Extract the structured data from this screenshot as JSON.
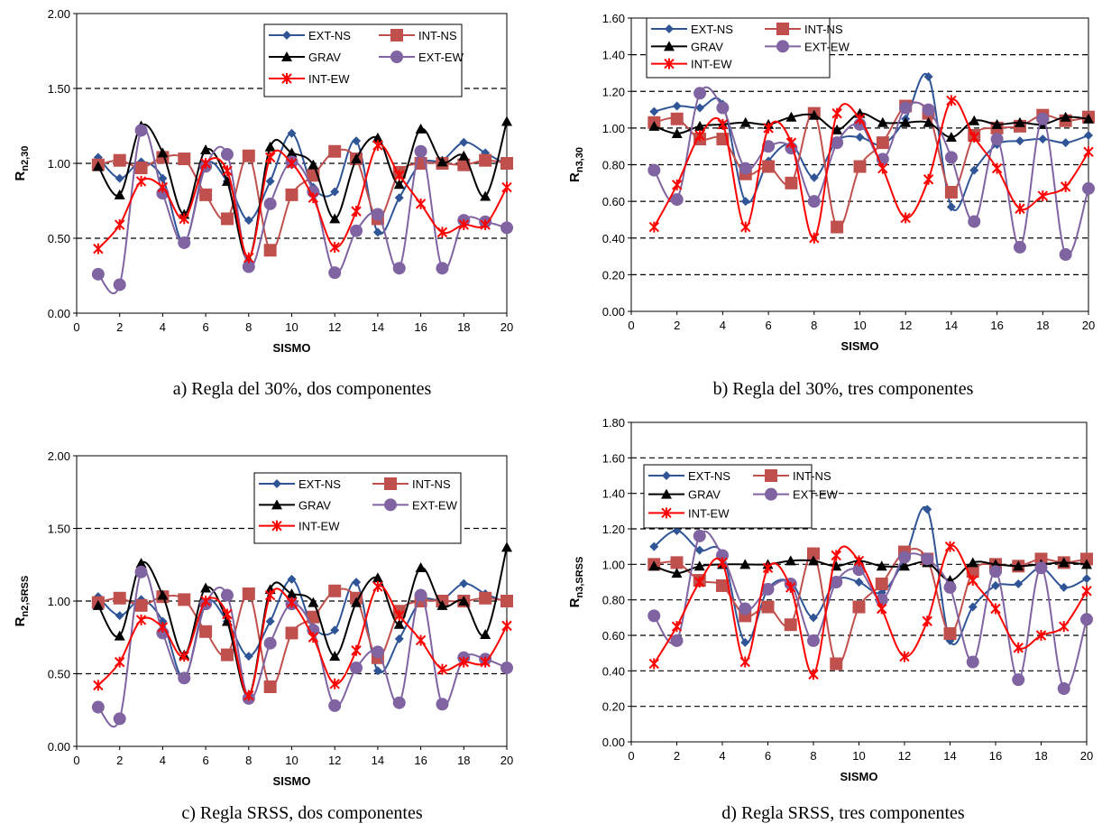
{
  "chart_data": [
    {
      "type": "line",
      "caption": "a) Regla del 30%, dos componentes",
      "xlabel": "SISMO",
      "ylabel": [
        "R",
        "n2,30"
      ],
      "x": [
        1,
        2,
        3,
        4,
        5,
        6,
        7,
        8,
        9,
        10,
        11,
        12,
        13,
        14,
        15,
        16,
        17,
        18,
        19,
        20
      ],
      "xlim": [
        0,
        20
      ],
      "xticks": [
        0,
        2,
        4,
        6,
        8,
        10,
        12,
        14,
        16,
        18,
        20
      ],
      "ylim": [
        0,
        2
      ],
      "yticks": [
        {
          "value": 0,
          "label": "0.00"
        },
        {
          "value": 0.5,
          "label": "0.50"
        },
        {
          "value": 1,
          "label": "1.00"
        },
        {
          "value": 1.5,
          "label": "1.50"
        },
        {
          "value": 2,
          "label": "2.00"
        }
      ],
      "grid": true,
      "series": [
        {
          "name": "EXT-NS",
          "color": "#2f5597",
          "marker": "diamond",
          "values": [
            1.04,
            0.9,
            1.01,
            0.9,
            0.47,
            0.99,
            0.88,
            0.62,
            0.88,
            1.2,
            0.84,
            0.81,
            1.15,
            0.54,
            0.77,
            1.0,
            1.02,
            1.14,
            1.07,
            0.99
          ]
        },
        {
          "name": "INT-NS",
          "color": "#c0504d",
          "marker": "square",
          "values": [
            0.99,
            1.02,
            0.97,
            1.04,
            1.03,
            0.79,
            0.63,
            1.05,
            0.42,
            0.79,
            0.92,
            1.08,
            1.03,
            0.63,
            0.94,
            1.0,
            1.0,
            0.99,
            1.02,
            1.0
          ]
        },
        {
          "name": "GRAV",
          "color": "#000000",
          "marker": "triangle",
          "values": [
            0.98,
            0.79,
            1.25,
            1.07,
            0.66,
            1.09,
            0.88,
            0.36,
            1.11,
            1.07,
            0.99,
            0.63,
            1.03,
            1.17,
            0.86,
            1.23,
            1.01,
            1.05,
            0.78,
            1.28
          ]
        },
        {
          "name": "EXT-EW",
          "color": "#8064a2",
          "marker": "circle",
          "values": [
            0.26,
            0.19,
            1.22,
            0.8,
            0.47,
            0.98,
            1.06,
            0.31,
            0.73,
            1.01,
            0.81,
            0.27,
            0.55,
            0.66,
            0.3,
            1.08,
            0.3,
            0.62,
            0.61,
            0.57
          ]
        },
        {
          "name": "INT-EW",
          "color": "#ff0000",
          "marker": "star",
          "values": [
            0.43,
            0.59,
            0.88,
            0.84,
            0.63,
            1.0,
            0.95,
            0.37,
            1.04,
            1.0,
            0.77,
            0.44,
            0.68,
            1.12,
            0.92,
            0.73,
            0.54,
            0.59,
            0.59,
            0.84
          ]
        }
      ]
    },
    {
      "type": "line",
      "caption": "b) Regla del 30%, tres componentes",
      "xlabel": "SISMO",
      "ylabel": [
        "R",
        "n3,30"
      ],
      "x": [
        1,
        2,
        3,
        4,
        5,
        6,
        7,
        8,
        9,
        10,
        11,
        12,
        13,
        14,
        15,
        16,
        17,
        18,
        19,
        20
      ],
      "xlim": [
        0,
        20
      ],
      "xticks": [
        0,
        2,
        4,
        6,
        8,
        10,
        12,
        14,
        16,
        18,
        20
      ],
      "ylim": [
        0,
        1.6
      ],
      "yticks": [
        {
          "value": 0,
          "label": "0.00"
        },
        {
          "value": 0.2,
          "label": "0.20"
        },
        {
          "value": 0.4,
          "label": "0.40"
        },
        {
          "value": 0.6,
          "label": "0.60"
        },
        {
          "value": 0.8,
          "label": "0.80"
        },
        {
          "value": 1,
          "label": "1.00"
        },
        {
          "value": 1.2,
          "label": "1.20"
        },
        {
          "value": 1.4,
          "label": "1.40"
        },
        {
          "value": 1.6,
          "label": "1.60"
        }
      ],
      "grid": true,
      "series": [
        {
          "name": "EXT-NS",
          "color": "#2f5597",
          "marker": "diamond",
          "values": [
            1.09,
            1.12,
            1.11,
            1.13,
            0.6,
            0.82,
            0.91,
            0.73,
            0.93,
            0.95,
            0.91,
            1.05,
            1.28,
            0.57,
            0.77,
            0.91,
            0.93,
            0.94,
            0.92,
            0.96
          ]
        },
        {
          "name": "INT-NS",
          "color": "#c0504d",
          "marker": "square",
          "values": [
            1.03,
            1.05,
            0.94,
            0.94,
            0.75,
            0.79,
            0.7,
            1.08,
            0.46,
            0.79,
            0.92,
            1.12,
            1.08,
            0.65,
            0.96,
            1.0,
            1.01,
            1.07,
            1.04,
            1.06
          ]
        },
        {
          "name": "GRAV",
          "color": "#000000",
          "marker": "triangle",
          "values": [
            1.01,
            0.97,
            1.01,
            1.02,
            1.03,
            1.02,
            1.06,
            1.07,
            0.99,
            1.08,
            1.03,
            1.03,
            1.03,
            0.95,
            1.04,
            1.02,
            1.03,
            1.02,
            1.06,
            1.05
          ]
        },
        {
          "name": "EXT-EW",
          "color": "#8064a2",
          "marker": "circle",
          "values": [
            0.77,
            0.61,
            1.19,
            1.11,
            0.78,
            0.9,
            0.89,
            0.6,
            0.92,
            1.02,
            0.83,
            1.11,
            1.1,
            0.84,
            0.49,
            0.94,
            0.35,
            1.05,
            0.31,
            0.67
          ]
        },
        {
          "name": "INT-EW",
          "color": "#ff0000",
          "marker": "star",
          "values": [
            0.46,
            0.69,
            0.96,
            1.02,
            0.46,
            1.0,
            0.92,
            0.4,
            1.08,
            1.05,
            0.78,
            0.51,
            0.72,
            1.15,
            0.95,
            0.78,
            0.56,
            0.63,
            0.68,
            0.87
          ]
        }
      ]
    },
    {
      "type": "line",
      "caption": "c) Regla SRSS, dos componentes",
      "xlabel": "SISMO",
      "ylabel": [
        "R",
        "n2,SRSS"
      ],
      "x": [
        1,
        2,
        3,
        4,
        5,
        6,
        7,
        8,
        9,
        10,
        11,
        12,
        13,
        14,
        15,
        16,
        17,
        18,
        19,
        20
      ],
      "xlim": [
        0,
        20
      ],
      "xticks": [
        0,
        2,
        4,
        6,
        8,
        10,
        12,
        14,
        16,
        18,
        20
      ],
      "ylim": [
        0,
        2
      ],
      "yticks": [
        {
          "value": 0,
          "label": "0.00"
        },
        {
          "value": 0.5,
          "label": "0.50"
        },
        {
          "value": 1,
          "label": "1.00"
        },
        {
          "value": 1.5,
          "label": "1.50"
        },
        {
          "value": 2,
          "label": "2.00"
        }
      ],
      "grid": true,
      "series": [
        {
          "name": "EXT-NS",
          "color": "#2f5597",
          "marker": "diamond",
          "values": [
            1.03,
            0.9,
            1.01,
            0.86,
            0.47,
            0.99,
            0.86,
            0.62,
            0.86,
            1.15,
            0.82,
            0.8,
            1.13,
            0.52,
            0.74,
            1.0,
            1.01,
            1.12,
            1.05,
            0.99
          ]
        },
        {
          "name": "INT-NS",
          "color": "#c0504d",
          "marker": "square",
          "values": [
            0.99,
            1.02,
            0.97,
            1.03,
            1.01,
            0.79,
            0.63,
            1.05,
            0.41,
            0.78,
            0.89,
            1.07,
            1.02,
            0.61,
            0.93,
            1.0,
            1.0,
            1.0,
            1.02,
            1.0
          ]
        },
        {
          "name": "GRAV",
          "color": "#000000",
          "marker": "triangle",
          "values": [
            0.97,
            0.76,
            1.26,
            1.04,
            0.63,
            1.09,
            0.86,
            0.35,
            1.08,
            1.05,
            0.99,
            0.62,
            0.99,
            1.16,
            0.84,
            1.23,
            0.97,
            1.0,
            0.77,
            1.37
          ]
        },
        {
          "name": "EXT-EW",
          "color": "#8064a2",
          "marker": "circle",
          "values": [
            0.27,
            0.19,
            1.2,
            0.78,
            0.47,
            0.98,
            1.04,
            0.33,
            0.71,
            0.98,
            0.8,
            0.28,
            0.54,
            0.65,
            0.3,
            1.04,
            0.29,
            0.61,
            0.6,
            0.54
          ]
        },
        {
          "name": "INT-EW",
          "color": "#ff0000",
          "marker": "star",
          "values": [
            0.42,
            0.58,
            0.87,
            0.82,
            0.62,
            1.0,
            0.91,
            0.35,
            1.04,
            0.99,
            0.75,
            0.43,
            0.66,
            1.1,
            0.9,
            0.73,
            0.53,
            0.58,
            0.58,
            0.83
          ]
        }
      ]
    },
    {
      "type": "line",
      "caption": "d) Regla SRSS, tres componentes",
      "xlabel": "SISMO",
      "ylabel": [
        "R",
        "n3,SRSS"
      ],
      "x": [
        1,
        2,
        3,
        4,
        5,
        6,
        7,
        8,
        9,
        10,
        11,
        12,
        13,
        14,
        15,
        16,
        17,
        18,
        19,
        20
      ],
      "xlim": [
        0,
        20
      ],
      "xticks": [
        0,
        2,
        4,
        6,
        8,
        10,
        12,
        14,
        16,
        18,
        20
      ],
      "ylim": [
        0,
        1.8
      ],
      "yticks": [
        {
          "value": 0,
          "label": "0.00"
        },
        {
          "value": 0.2,
          "label": "0.20"
        },
        {
          "value": 0.4,
          "label": "0.40"
        },
        {
          "value": 0.6,
          "label": "0.60"
        },
        {
          "value": 0.8,
          "label": "0.80"
        },
        {
          "value": 1,
          "label": "1.00"
        },
        {
          "value": 1.2,
          "label": "1.20"
        },
        {
          "value": 1.4,
          "label": "1.40"
        },
        {
          "value": 1.6,
          "label": "1.60"
        },
        {
          "value": 1.8,
          "label": "1.80"
        }
      ],
      "grid": true,
      "series": [
        {
          "name": "EXT-NS",
          "color": "#2f5597",
          "marker": "diamond",
          "values": [
            1.1,
            1.19,
            1.08,
            1.06,
            0.56,
            0.86,
            0.9,
            0.7,
            0.91,
            0.9,
            0.84,
            1.03,
            1.31,
            0.57,
            0.76,
            0.88,
            0.89,
            0.98,
            0.87,
            0.92
          ]
        },
        {
          "name": "INT-NS",
          "color": "#c0504d",
          "marker": "square",
          "values": [
            1.0,
            1.01,
            0.91,
            0.88,
            0.71,
            0.76,
            0.66,
            1.06,
            0.44,
            0.76,
            0.89,
            1.07,
            1.03,
            0.61,
            0.96,
            1.0,
            0.99,
            1.03,
            1.01,
            1.03
          ]
        },
        {
          "name": "GRAV",
          "color": "#000000",
          "marker": "triangle",
          "values": [
            0.99,
            0.95,
            0.99,
            1.0,
            1.0,
            1.0,
            1.02,
            1.02,
            0.99,
            1.02,
            0.99,
            0.99,
            1.01,
            0.91,
            1.01,
            1.0,
            0.99,
            1.0,
            1.01,
            1.0
          ]
        },
        {
          "name": "EXT-EW",
          "color": "#8064a2",
          "marker": "circle",
          "values": [
            0.71,
            0.57,
            1.16,
            1.05,
            0.75,
            0.86,
            0.89,
            0.57,
            0.9,
            0.97,
            0.8,
            1.04,
            1.03,
            0.87,
            0.45,
            0.96,
            0.35,
            0.98,
            0.3,
            0.69
          ]
        },
        {
          "name": "INT-EW",
          "color": "#ff0000",
          "marker": "star",
          "values": [
            0.44,
            0.65,
            0.9,
            1.01,
            0.45,
            0.98,
            0.87,
            0.38,
            1.05,
            1.02,
            0.75,
            0.48,
            0.68,
            1.1,
            0.91,
            0.75,
            0.53,
            0.6,
            0.65,
            0.85
          ]
        }
      ]
    }
  ]
}
